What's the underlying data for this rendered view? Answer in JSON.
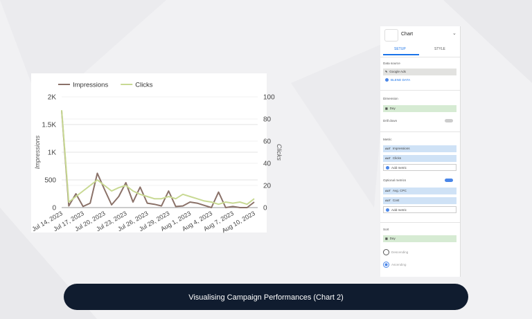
{
  "chart_data": {
    "type": "line",
    "categories": [
      "Jul 14, 2023",
      null,
      null,
      "Jul 17, 2023",
      null,
      null,
      "Jul 20, 2023",
      null,
      null,
      "Jul 23, 2023",
      null,
      null,
      "Jul 26, 2023",
      null,
      null,
      "Jul 29, 2023",
      null,
      null,
      "Aug 1, 2023",
      null,
      null,
      "Aug 4, 2023",
      null,
      null,
      "Aug 7, 2023",
      null,
      null,
      "Aug 10, 2023"
    ],
    "series": [
      {
        "name": "Impressions",
        "color": "#8a7168",
        "values": [
          1750,
          30,
          250,
          20,
          80,
          620,
          330,
          50,
          200,
          450,
          100,
          370,
          80,
          60,
          30,
          300,
          20,
          30,
          100,
          80,
          40,
          0,
          280,
          0,
          20,
          0,
          0,
          100
        ]
      },
      {
        "name": "Clicks",
        "color": "#c8d993",
        "axis": "y2",
        "values": [
          88,
          5,
          10,
          15,
          20,
          25,
          20,
          15,
          18,
          20,
          15,
          12,
          10,
          8,
          8,
          10,
          8,
          12,
          10,
          8,
          6,
          5,
          3,
          5,
          4,
          5,
          3,
          8
        ]
      }
    ],
    "ylabel": "Impressions",
    "y2label": "Clicks",
    "ylim": [
      0,
      2000
    ],
    "yticks": [
      0,
      500,
      {
        "value": 1000,
        "label": "1K"
      },
      {
        "value": 1500,
        "label": "1.5K"
      },
      {
        "value": 2000,
        "label": "2K"
      }
    ],
    "y2lim": [
      0,
      100
    ],
    "y2ticks": [
      0,
      20,
      40,
      60,
      80,
      100
    ],
    "grid": true,
    "legend": "top-left"
  },
  "panel": {
    "header": "Chart",
    "tabs": [
      "SETUP",
      "STYLE"
    ],
    "badge": "AUT",
    "data_source": {
      "label": "Data source",
      "value": "Google Ads",
      "blend": "BLEND DATA"
    },
    "dimension": {
      "label": "Dimension",
      "value": "Day"
    },
    "drill_down": "Drill down",
    "metric": {
      "label": "Metric",
      "items": [
        "Impressions",
        "Clicks"
      ],
      "add": "Add metric"
    },
    "optional_metrics": {
      "label": "Optional metrics",
      "items": [
        "Avg. CPC",
        "Cost"
      ],
      "add": "Add metric"
    },
    "sort": {
      "label": "Sort",
      "value": "Day",
      "options": [
        "Descending",
        "Ascending"
      ]
    }
  },
  "caption": "Visualising Campaign Performances (Chart 2)"
}
